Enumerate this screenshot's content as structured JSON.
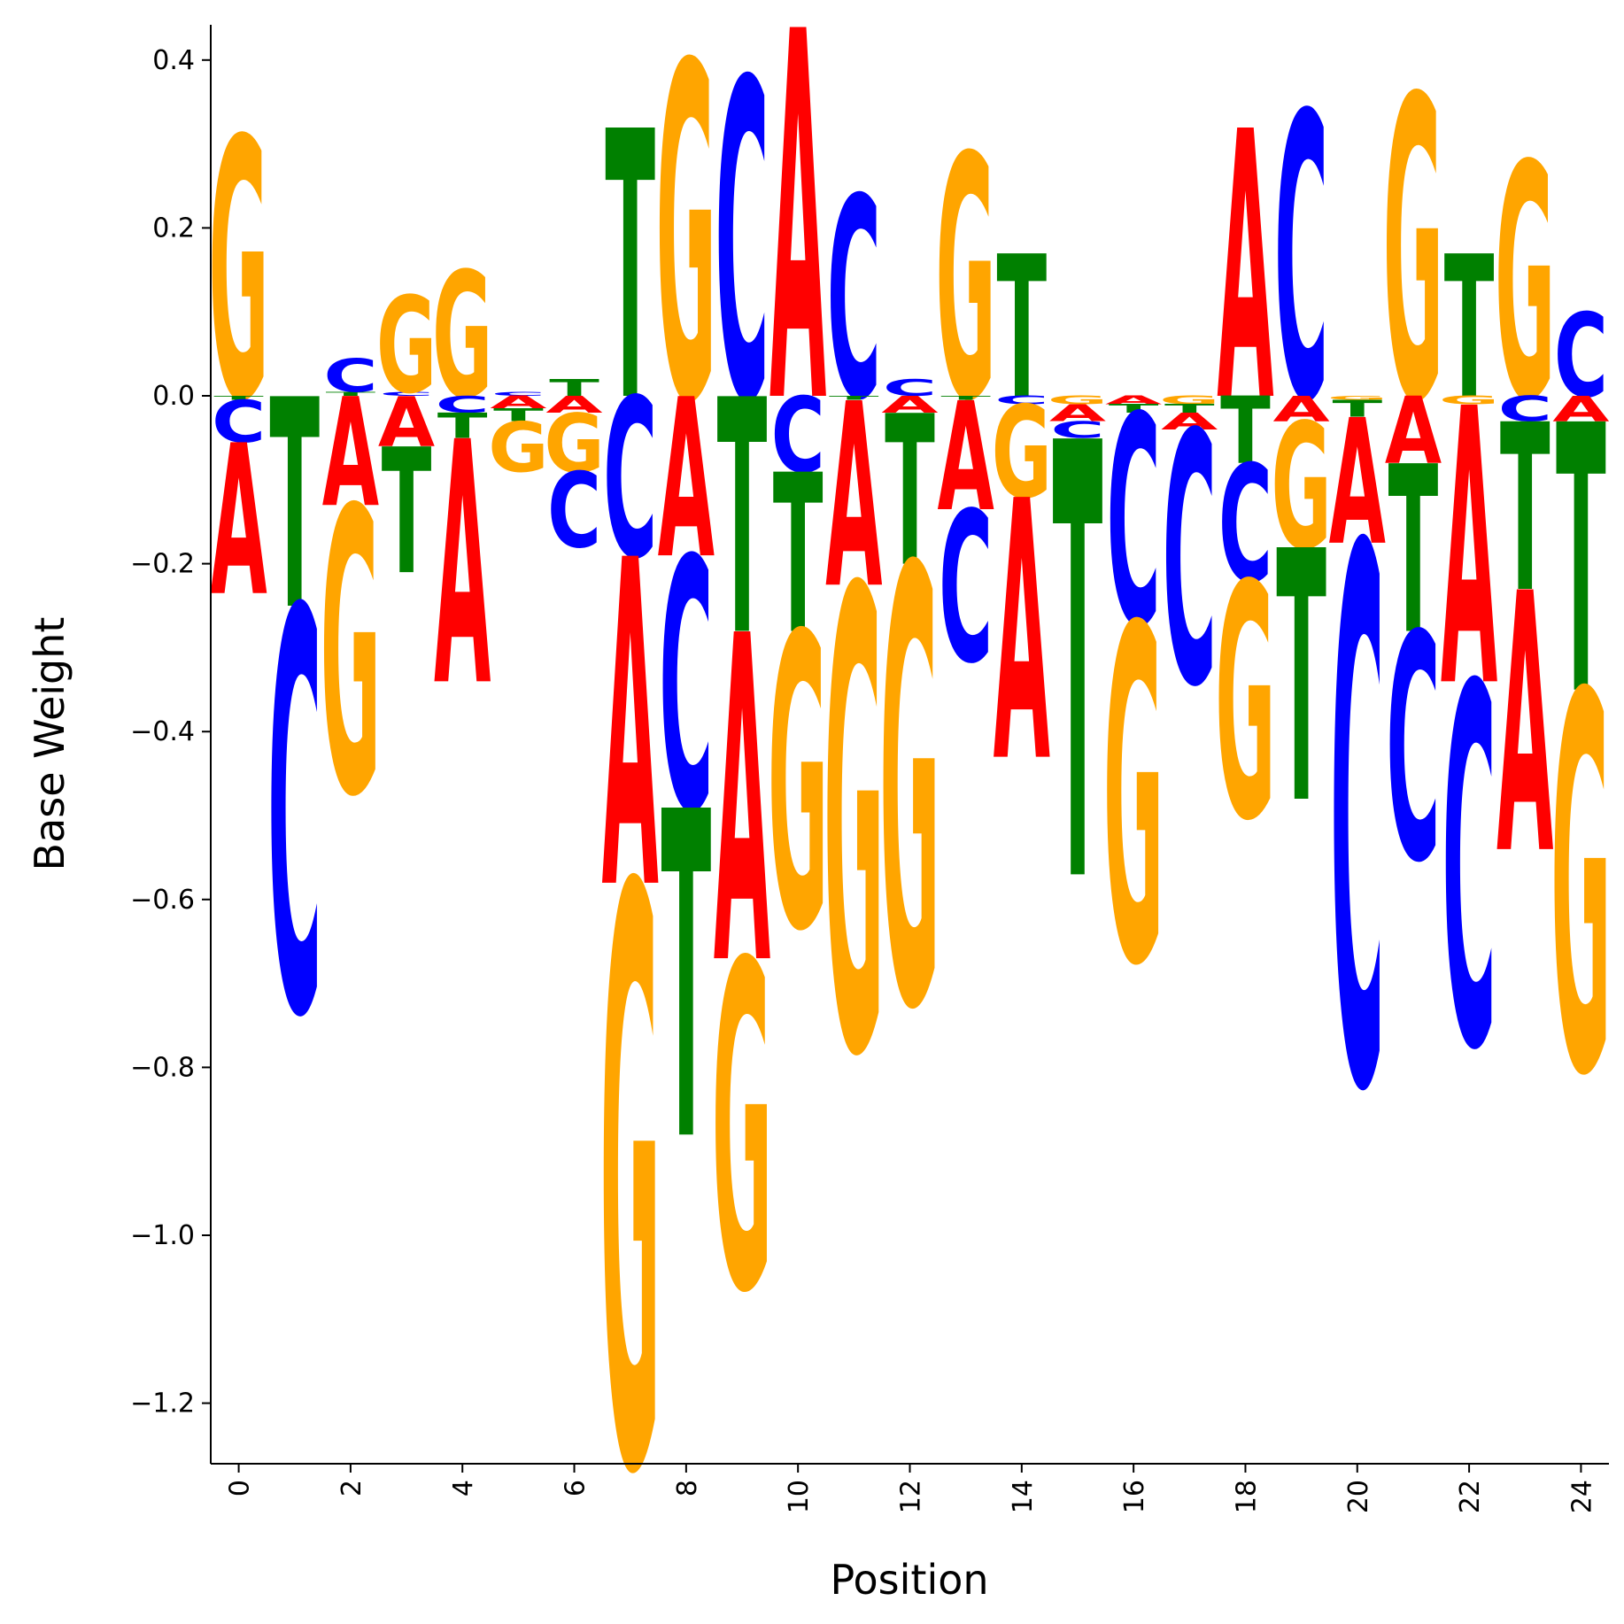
{
  "chart_data": {
    "type": "sequence-logo",
    "title": "",
    "xlabel": "Position",
    "ylabel": "Base Weight",
    "xlim": [
      -0.5,
      24.5
    ],
    "ylim": [
      -1.27,
      0.44
    ],
    "xticks": [
      0,
      2,
      4,
      6,
      8,
      10,
      12,
      14,
      16,
      18,
      20,
      22,
      24
    ],
    "yticks": [
      0.4,
      0.2,
      0.0,
      -0.2,
      -0.4,
      -0.6,
      -0.8,
      -1.0,
      -1.2
    ],
    "ytick_labels": [
      "0.4",
      "0.2",
      "0.0",
      "−0.2",
      "−0.4",
      "−0.6",
      "−0.8",
      "−1.0",
      "−1.2"
    ],
    "colors": {
      "A": "#ff0000",
      "C": "#0000ff",
      "G": "#ffa500",
      "T": "#008000"
    },
    "positions": [
      {
        "pos": 0,
        "A": -0.18,
        "C": -0.05,
        "G": 0.31,
        "T": -0.005
      },
      {
        "pos": 1,
        "A": 0.0,
        "C": -0.48,
        "G": 0.0,
        "T": -0.25
      },
      {
        "pos": 2,
        "A": -0.13,
        "C": 0.04,
        "G": -0.34,
        "T": 0.005
      },
      {
        "pos": 3,
        "A": -0.06,
        "C": 0.005,
        "G": 0.115,
        "T": -0.15
      },
      {
        "pos": 4,
        "A": -0.29,
        "C": -0.02,
        "G": 0.15,
        "T": -0.03
      },
      {
        "pos": 5,
        "A": -0.015,
        "C": 0.005,
        "G": -0.06,
        "T": -0.015
      },
      {
        "pos": 6,
        "A": -0.02,
        "C": -0.09,
        "G": -0.07,
        "T": 0.02
      },
      {
        "pos": 7,
        "A": -0.39,
        "C": -0.19,
        "G": -0.69,
        "T": 0.32
      },
      {
        "pos": 8,
        "A": -0.19,
        "C": -0.3,
        "G": 0.4,
        "T": -0.39
      },
      {
        "pos": 9,
        "A": -0.39,
        "C": 0.38,
        "G": -0.39,
        "T": -0.28
      },
      {
        "pos": 10,
        "A": 0.44,
        "C": -0.09,
        "G": -0.35,
        "T": -0.19
      },
      {
        "pos": 11,
        "A": -0.22,
        "C": 0.24,
        "G": -0.55,
        "T": -0.005
      },
      {
        "pos": 12,
        "A": -0.02,
        "C": 0.02,
        "G": -0.52,
        "T": -0.18
      },
      {
        "pos": 13,
        "A": -0.13,
        "C": -0.18,
        "G": 0.29,
        "T": -0.005
      },
      {
        "pos": 14,
        "A": -0.31,
        "C": -0.01,
        "G": -0.11,
        "T": 0.17
      },
      {
        "pos": 15,
        "A": -0.02,
        "C": -0.02,
        "G": -0.01,
        "T": -0.52
      },
      {
        "pos": 16,
        "A": -0.01,
        "C": -0.25,
        "G": -0.4,
        "T": -0.01
      },
      {
        "pos": 17,
        "A": -0.02,
        "C": -0.3,
        "G": -0.01,
        "T": -0.01
      },
      {
        "pos": 18,
        "A": 0.32,
        "C": -0.14,
        "G": -0.28,
        "T": -0.08
      },
      {
        "pos": 19,
        "A": -0.03,
        "C": 0.34,
        "G": -0.15,
        "T": -0.3
      },
      {
        "pos": 20,
        "A": -0.15,
        "C": -0.64,
        "G": -0.005,
        "T": -0.02
      },
      {
        "pos": 21,
        "A": -0.08,
        "C": -0.27,
        "G": 0.36,
        "T": -0.2
      },
      {
        "pos": 22,
        "A": -0.33,
        "C": -0.43,
        "G": -0.01,
        "T": 0.17
      },
      {
        "pos": 23,
        "A": -0.31,
        "C": -0.03,
        "G": 0.28,
        "T": -0.2
      },
      {
        "pos": 24,
        "A": -0.03,
        "C": 0.1,
        "G": -0.45,
        "T": -0.32
      }
    ]
  }
}
